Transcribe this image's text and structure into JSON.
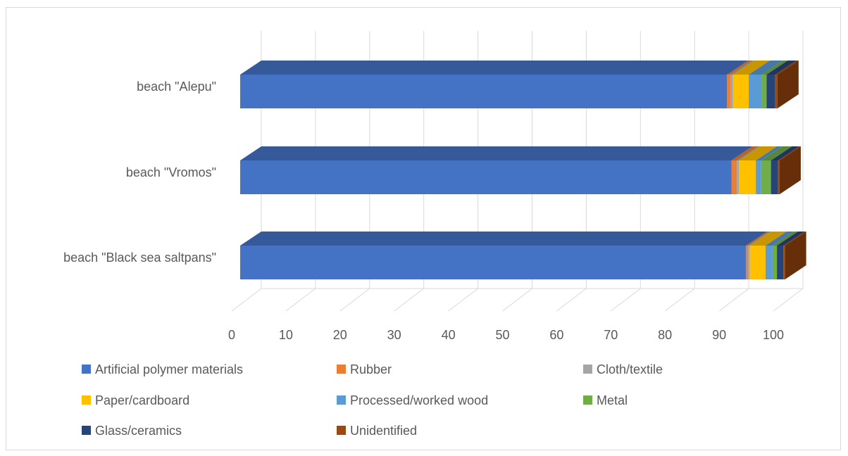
{
  "chart_data": {
    "type": "bar",
    "orientation": "horizontal",
    "stacked": true,
    "style": "3d",
    "categories": [
      "beach \"Alepu\"",
      "beach \"Vromos\"",
      "beach \"Black sea saltpans\""
    ],
    "series": [
      {
        "name": "Artificial polymer materials",
        "color": "#4472C4",
        "values": [
          89.9,
          90.7,
          93.4
        ]
      },
      {
        "name": "Rubber",
        "color": "#ED7D31",
        "values": [
          0.6,
          1.0,
          0.4
        ]
      },
      {
        "name": "Cloth/textile",
        "color": "#A5A5A5",
        "values": [
          0.5,
          0.4,
          0.3
        ]
      },
      {
        "name": "Paper/cardboard",
        "color": "#FFC000",
        "values": [
          2.9,
          3.1,
          2.9
        ]
      },
      {
        "name": "Processed/worked wood",
        "color": "#5B9BD5",
        "values": [
          2.4,
          1.0,
          1.3
        ]
      },
      {
        "name": "Metal",
        "color": "#70AD47",
        "values": [
          0.9,
          1.8,
          0.8
        ]
      },
      {
        "name": "Glass/ceramics",
        "color": "#264478",
        "values": [
          1.6,
          1.3,
          1.2
        ]
      },
      {
        "name": "Unidentified",
        "color": "#9E480E",
        "values": [
          0.4,
          0.3,
          0.3
        ]
      }
    ],
    "x_ticks": [
      "0",
      "10",
      "20",
      "30",
      "40",
      "50",
      "60",
      "70",
      "80",
      "90",
      "100"
    ],
    "xlim": [
      0,
      100
    ],
    "grid": true,
    "legend_position": "bottom"
  }
}
